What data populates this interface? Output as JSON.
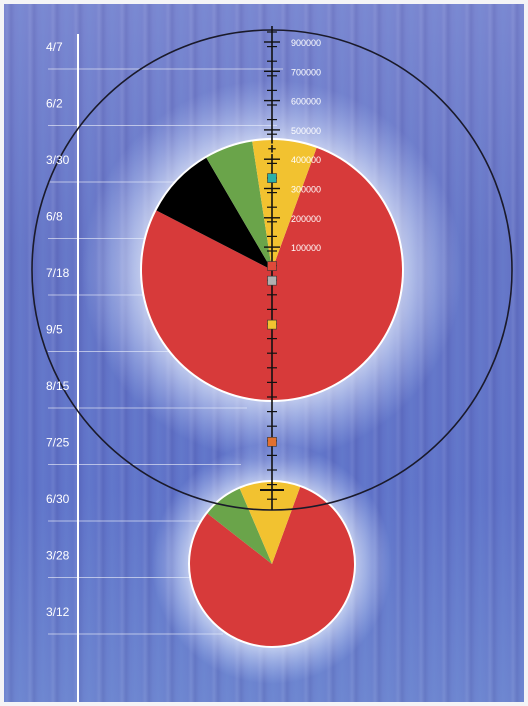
{
  "chart_data": {
    "type": "pie",
    "timeline": {
      "labels": [
        "4/7",
        "6/2",
        "3/30",
        "6/8",
        "7/18",
        "9/5",
        "8/15",
        "7/25",
        "6/30",
        "3/28",
        "3/12"
      ]
    },
    "value_axis": {
      "ticks": [
        900000,
        700000,
        600000,
        500000,
        400000,
        300000,
        200000,
        100000
      ],
      "markers": [
        {
          "value": 400000,
          "color": "#f2c230",
          "shape": "square-outline"
        },
        {
          "value": 300000,
          "color": "#2bb0a8",
          "shape": "square"
        },
        {
          "value": 0,
          "color": "#e04a3a",
          "shape": "square"
        },
        {
          "value": -50000,
          "color": "#b0b0b0",
          "shape": "square"
        },
        {
          "value": -200000,
          "color": "#f2c230",
          "shape": "square"
        },
        {
          "value": -600000,
          "color": "#e07030",
          "shape": "square"
        }
      ]
    },
    "pies": [
      {
        "slices": [
          {
            "value": 77,
            "color": "#d73a3a"
          },
          {
            "value": 9,
            "color": "#000000"
          },
          {
            "value": 6,
            "color": "#6aa44a"
          },
          {
            "value": 8,
            "color": "#f2c230"
          }
        ]
      },
      {
        "slices": [
          {
            "value": 80,
            "color": "#d73a3a"
          },
          {
            "value": 8,
            "color": "#6aa44a"
          },
          {
            "value": 12,
            "color": "#f2c230"
          }
        ]
      }
    ]
  }
}
